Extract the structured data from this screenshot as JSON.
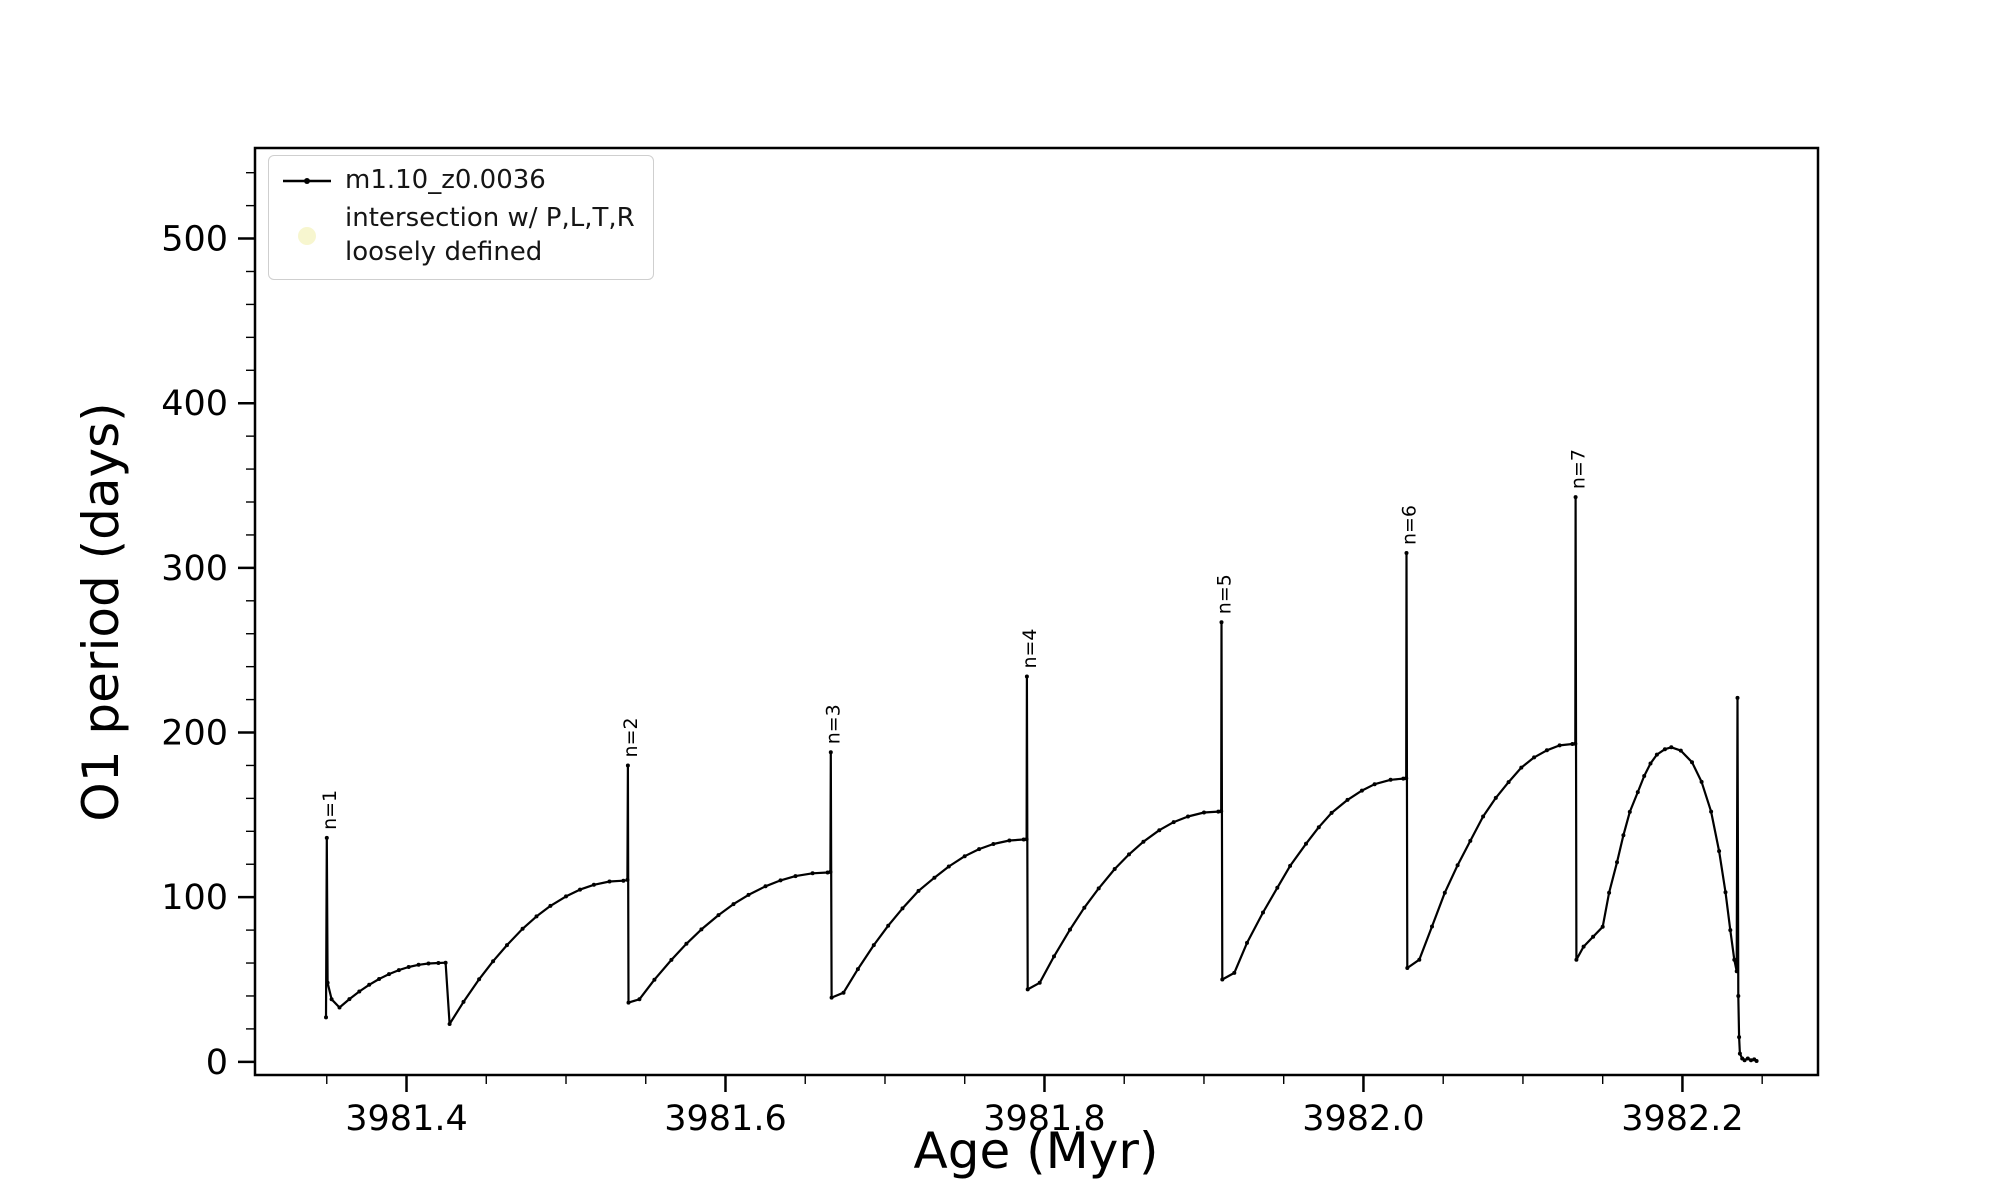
{
  "chart_data": {
    "type": "line",
    "xlabel": "Age (Myr)",
    "ylabel": "O1 period (days)",
    "xlim": [
      3981.305,
      3982.285
    ],
    "ylim": [
      -8,
      555
    ],
    "grid": false,
    "legend_position": "upper-left",
    "x_ticks": {
      "values": [
        3981.4,
        3981.6,
        3981.8,
        3982.0,
        3982.2
      ],
      "labels": [
        "3981.4",
        "3981.6",
        "3981.8",
        "3982.0",
        "3982.2"
      ]
    },
    "y_ticks": {
      "values": [
        0,
        100,
        200,
        300,
        400,
        500
      ],
      "labels": [
        "0",
        "100",
        "200",
        "300",
        "400",
        "500"
      ]
    },
    "x_minor_step": 0.05,
    "y_minor_step": 20,
    "legend": {
      "entries": [
        {
          "marker": "line-dot",
          "color": "#000000",
          "label": "m1.10_z0.0036"
        },
        {
          "marker": "dot",
          "color": "#f0eda0",
          "label": "intersection w/ P,L,T,R\nloosely defined"
        }
      ]
    },
    "annotations": [
      {
        "label": "n=1",
        "x": 3981.35,
        "y": 136
      },
      {
        "label": "n=2",
        "x": 3981.5388,
        "y": 180
      },
      {
        "label": "n=3",
        "x": 3981.666,
        "y": 188
      },
      {
        "label": "n=4",
        "x": 3981.789,
        "y": 234
      },
      {
        "label": "n=5",
        "x": 3981.911,
        "y": 267
      },
      {
        "label": "n=6",
        "x": 3982.027,
        "y": 309
      },
      {
        "label": "n=7",
        "x": 3982.133,
        "y": 343
      }
    ],
    "series": [
      {
        "name": "m1.10_z0.0036",
        "color": "#000000",
        "marker": "point",
        "points": [
          [
            3981.3495,
            27
          ],
          [
            3981.35,
            136
          ],
          [
            3981.3505,
            48
          ],
          [
            3981.353,
            38
          ],
          [
            3981.358,
            33
          ],
          [
            3981.3642,
            38.1
          ],
          [
            3981.3704,
            42.7
          ],
          [
            3981.3766,
            46.8
          ],
          [
            3981.3828,
            50.3
          ],
          [
            3981.389,
            53.3
          ],
          [
            3981.3952,
            55.7
          ],
          [
            3981.4014,
            57.6
          ],
          [
            3981.4076,
            58.9
          ],
          [
            3981.4138,
            59.7
          ],
          [
            3981.42,
            60
          ],
          [
            3981.4245,
            60.2
          ],
          [
            3981.427,
            23
          ],
          [
            3981.4357,
            36.4
          ],
          [
            3981.4455,
            50.1
          ],
          [
            3981.4543,
            61.1
          ],
          [
            3981.463,
            70.9
          ],
          [
            3981.4728,
            80.8
          ],
          [
            3981.4815,
            88.3
          ],
          [
            3981.4902,
            94.7
          ],
          [
            3981.5,
            100.5
          ],
          [
            3981.5088,
            104.6
          ],
          [
            3981.5175,
            107.5
          ],
          [
            3981.5273,
            109.5
          ],
          [
            3981.536,
            110
          ],
          [
            3981.5385,
            110.5
          ],
          [
            3981.5388,
            180
          ],
          [
            3981.5392,
            36
          ],
          [
            3981.546,
            38
          ],
          [
            3981.5554,
            49.9
          ],
          [
            3981.5661,
            61.9
          ],
          [
            3981.5755,
            71.7
          ],
          [
            3981.5849,
            80.4
          ],
          [
            3981.5956,
            89.1
          ],
          [
            3981.605,
            95.8
          ],
          [
            3981.6144,
            101.4
          ],
          [
            3981.6251,
            106.6
          ],
          [
            3981.6345,
            110.2
          ],
          [
            3981.6439,
            112.8
          ],
          [
            3981.6546,
            114.5
          ],
          [
            3981.664,
            115
          ],
          [
            3981.6658,
            115.3
          ],
          [
            3981.666,
            188
          ],
          [
            3981.6665,
            39
          ],
          [
            3981.674,
            42
          ],
          [
            3981.683,
            56.3
          ],
          [
            3981.693,
            70.9
          ],
          [
            3981.702,
            82.7
          ],
          [
            3981.711,
            93.2
          ],
          [
            3981.721,
            103.8
          ],
          [
            3981.731,
            111.8
          ],
          [
            3981.74,
            118.6
          ],
          [
            3981.75,
            124.9
          ],
          [
            3981.759,
            129.2
          ],
          [
            3981.768,
            132.3
          ],
          [
            3981.778,
            134.4
          ],
          [
            3981.787,
            135
          ],
          [
            3981.7888,
            135.2
          ],
          [
            3981.789,
            234
          ],
          [
            3981.7895,
            44
          ],
          [
            3981.797,
            48
          ],
          [
            3981.806,
            64
          ],
          [
            3981.816,
            80.3
          ],
          [
            3981.825,
            93.6
          ],
          [
            3981.834,
            105.3
          ],
          [
            3981.844,
            117.1
          ],
          [
            3981.853,
            126
          ],
          [
            3981.862,
            133.7
          ],
          [
            3981.872,
            140.7
          ],
          [
            3981.881,
            145.6
          ],
          [
            3981.89,
            149
          ],
          [
            3981.9,
            151.4
          ],
          [
            3981.909,
            152
          ],
          [
            3981.9108,
            152.2
          ],
          [
            3981.911,
            267
          ],
          [
            3981.9115,
            50
          ],
          [
            3981.919,
            54
          ],
          [
            3981.927,
            72.2
          ],
          [
            3981.937,
            90.7
          ],
          [
            3981.946,
            105.7
          ],
          [
            3981.954,
            119
          ],
          [
            3981.964,
            132.4
          ],
          [
            3981.972,
            142.5
          ],
          [
            3981.98,
            151.2
          ],
          [
            3981.99,
            159.1
          ],
          [
            3981.999,
            164.7
          ],
          [
            3982.007,
            168.6
          ],
          [
            3982.017,
            171.3
          ],
          [
            3982.025,
            172
          ],
          [
            3982.0268,
            172.2
          ],
          [
            3982.027,
            309
          ],
          [
            3982.0275,
            57
          ],
          [
            3982.035,
            62
          ],
          [
            3982.043,
            82.2
          ],
          [
            3982.051,
            102.7
          ],
          [
            3982.059,
            119.4
          ],
          [
            3982.067,
            134.2
          ],
          [
            3982.075,
            149
          ],
          [
            3982.083,
            160.3
          ],
          [
            3982.091,
            169.9
          ],
          [
            3982.099,
            178.7
          ],
          [
            3982.107,
            184.9
          ],
          [
            3982.115,
            189.2
          ],
          [
            3982.123,
            192.2
          ],
          [
            3982.131,
            193
          ],
          [
            3982.1328,
            193.2
          ],
          [
            3982.133,
            343
          ],
          [
            3982.1335,
            62
          ],
          [
            3982.138,
            70
          ],
          [
            3982.144,
            76
          ],
          [
            3982.15,
            82
          ],
          [
            3982.154,
            102.7
          ],
          [
            3982.159,
            121.2
          ],
          [
            3982.163,
            137.6
          ],
          [
            3982.167,
            151.8
          ],
          [
            3982.172,
            163.8
          ],
          [
            3982.176,
            173.6
          ],
          [
            3982.18,
            181.2
          ],
          [
            3982.184,
            186.6
          ],
          [
            3982.189,
            189.9
          ],
          [
            3982.193,
            191
          ],
          [
            3982.199,
            189
          ],
          [
            3982.206,
            182
          ],
          [
            3982.212,
            170
          ],
          [
            3982.218,
            152
          ],
          [
            3982.223,
            128
          ],
          [
            3982.227,
            103
          ],
          [
            3982.23,
            80
          ],
          [
            3982.2325,
            62
          ],
          [
            3982.234,
            55
          ],
          [
            3982.2345,
            221
          ],
          [
            3982.235,
            40
          ],
          [
            3982.2355,
            15
          ],
          [
            3982.236,
            5
          ],
          [
            3982.2375,
            2
          ],
          [
            3982.239,
            1
          ],
          [
            3982.241,
            2
          ],
          [
            3982.243,
            1
          ],
          [
            3982.245,
            1.5
          ],
          [
            3982.2465,
            0.5
          ]
        ]
      }
    ]
  }
}
